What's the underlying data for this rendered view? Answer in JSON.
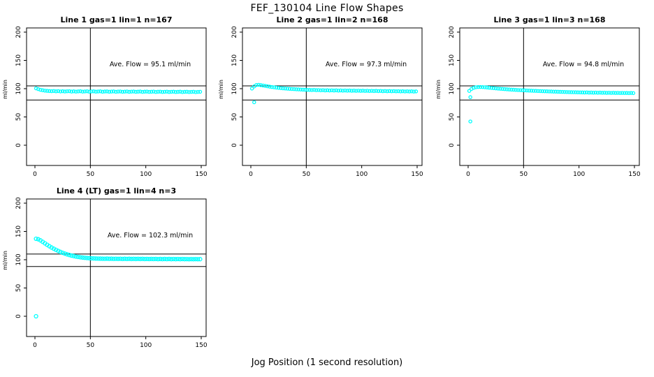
{
  "title": "FEF_130104  Line Flow Shapes",
  "xlabel": "Jog Position (1 second resolution)",
  "chart_data": {
    "type": "scatter",
    "layout": "2x3 grid, 4 panels used",
    "marker": "open-circle",
    "point_color": "#00ffff",
    "axis_color": "#000000",
    "xticks": [
      0,
      50,
      100,
      150
    ],
    "yticks": [
      0,
      50,
      100,
      150,
      200
    ],
    "ylabel": "ml/min",
    "xlim": [
      -7,
      155
    ],
    "ylim": [
      -36,
      207
    ],
    "vertical_ref_line_x": 50,
    "x_start": 1,
    "x_step": 2,
    "subplots": [
      {
        "title": "Line 1 gas=1 lin=1 n=167",
        "annotation": "Ave. Flow =  95.1  ml/min",
        "avg_flow": 95.1,
        "n": 167,
        "ref_lines_y": [
          105,
          80
        ],
        "marker_r": 2.1,
        "y": [
          100.6,
          99.2,
          98.0,
          97.2,
          96.5,
          96.1,
          95.8,
          95.6,
          95.9,
          95.3,
          95.7,
          95.1,
          95.5,
          95.0,
          95.4,
          95.6,
          94.9,
          95.3,
          94.8,
          95.2,
          95.5,
          94.8,
          95.1,
          95.4,
          94.7,
          95.1,
          95.3,
          94.7,
          95.0,
          95.3,
          94.6,
          95.0,
          95.2,
          94.6,
          94.9,
          95.2,
          94.5,
          94.9,
          95.1,
          94.5,
          94.8,
          95.1,
          94.4,
          94.8,
          95.0,
          94.4,
          94.7,
          95.0,
          94.3,
          94.7,
          94.9,
          94.3,
          94.6,
          94.9,
          94.2,
          94.6,
          94.8,
          94.2,
          94.5,
          94.8,
          94.1,
          94.5,
          94.7,
          94.1,
          94.4,
          94.7,
          94.0,
          94.4,
          94.6,
          94.0,
          94.3,
          94.6,
          93.9,
          94.3,
          94.5
        ],
        "outliers": []
      },
      {
        "title": "Line 2 gas=1 lin=2 n=168",
        "annotation": "Ave. Flow =  97.3  ml/min",
        "avg_flow": 97.3,
        "n": 168,
        "ref_lines_y": [
          105,
          80
        ],
        "marker_r": 2.1,
        "y": [
          100.2,
          104.0,
          106.5,
          106.8,
          106.3,
          105.6,
          104.9,
          104.2,
          103.5,
          102.9,
          102.4,
          101.9,
          101.4,
          101.0,
          100.6,
          100.3,
          100.0,
          99.7,
          99.4,
          99.2,
          98.9,
          98.7,
          98.5,
          98.3,
          98.1,
          97.9,
          97.8,
          97.6,
          97.9,
          97.3,
          97.6,
          97.1,
          97.4,
          96.9,
          97.2,
          96.8,
          97.1,
          96.7,
          97.0,
          96.6,
          96.9,
          96.5,
          96.8,
          96.4,
          96.7,
          96.3,
          96.6,
          96.2,
          96.5,
          96.1,
          96.4,
          96.0,
          96.3,
          95.9,
          96.2,
          95.8,
          96.1,
          95.7,
          96.0,
          95.6,
          95.9,
          95.5,
          95.8,
          95.4,
          95.7,
          95.3,
          95.6,
          95.2,
          95.5,
          95.1,
          95.4,
          95.0,
          95.3,
          94.9,
          95.2
        ],
        "outliers": [
          [
            3,
            76
          ]
        ]
      },
      {
        "title": "Line 3 gas=1 lin=3 n=168",
        "annotation": "Ave. Flow =  94.8  ml/min",
        "avg_flow": 94.8,
        "n": 168,
        "ref_lines_y": [
          105,
          80
        ],
        "marker_r": 2.1,
        "y": [
          96.0,
          99.5,
          101.5,
          102.5,
          103.0,
          103.0,
          102.8,
          102.5,
          102.1,
          101.7,
          101.3,
          100.9,
          100.5,
          100.1,
          99.8,
          99.5,
          99.2,
          98.9,
          98.6,
          98.3,
          98.1,
          97.8,
          97.6,
          97.4,
          97.2,
          97.0,
          96.8,
          96.6,
          96.4,
          96.2,
          96.1,
          95.9,
          95.7,
          95.6,
          95.4,
          95.3,
          95.1,
          95.0,
          94.8,
          94.7,
          94.6,
          94.4,
          94.3,
          94.2,
          94.0,
          93.9,
          93.8,
          93.7,
          93.6,
          93.5,
          93.4,
          93.3,
          93.2,
          93.4,
          93.0,
          93.2,
          92.9,
          93.1,
          92.8,
          93.0,
          92.7,
          92.9,
          92.6,
          92.8,
          92.5,
          92.7,
          92.4,
          92.6,
          92.3,
          92.5,
          92.3,
          92.4,
          92.2,
          92.4,
          92.2
        ],
        "outliers": [
          [
            2,
            85
          ],
          [
            2,
            42
          ]
        ]
      },
      {
        "title": "Line 4 (LT) gas=1 lin=4 n=3",
        "annotation": "Ave. Flow =  102.3  ml/min",
        "avg_flow": 102.3,
        "n": 3,
        "ref_lines_y": [
          110,
          88
        ],
        "marker_r": 2.5,
        "y": [
          137.0,
          136.2,
          134.2,
          131.6,
          129.0,
          126.4,
          123.9,
          121.5,
          119.4,
          117.4,
          115.5,
          113.8,
          112.2,
          110.8,
          109.5,
          108.3,
          107.3,
          106.4,
          105.6,
          104.9,
          104.3,
          103.8,
          103.4,
          103.0,
          102.7,
          102.5,
          102.3,
          102.1,
          102.0,
          101.9,
          101.8,
          101.7,
          101.9,
          101.6,
          101.8,
          101.5,
          101.7,
          101.5,
          101.7,
          101.4,
          101.6,
          101.4,
          101.6,
          101.3,
          101.5,
          101.3,
          101.5,
          101.3,
          101.5,
          101.2,
          101.4,
          101.2,
          101.4,
          101.2,
          101.4,
          101.1,
          101.3,
          101.1,
          101.3,
          101.1,
          101.3,
          101.0,
          101.2,
          101.0,
          101.2,
          101.0,
          101.2,
          101.0,
          101.1,
          100.9,
          101.1,
          100.9,
          101.1,
          100.9,
          101.0
        ],
        "outliers": [
          [
            1,
            0
          ]
        ]
      }
    ]
  }
}
